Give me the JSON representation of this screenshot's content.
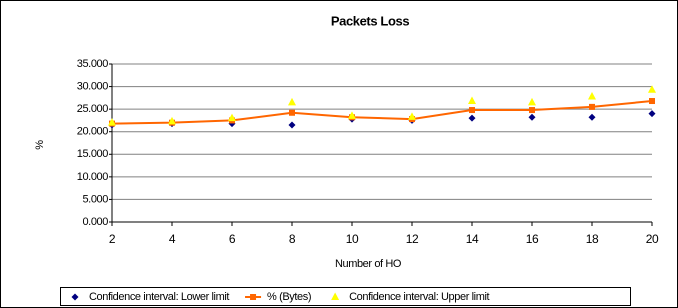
{
  "chart_data": {
    "type": "line",
    "title": "Packets Loss",
    "x_label": "Number of HO",
    "y_label": "%",
    "x": [
      2,
      4,
      6,
      8,
      10,
      12,
      14,
      16,
      18,
      20
    ],
    "xlim": [
      2,
      20
    ],
    "xticks": [
      2,
      4,
      6,
      8,
      10,
      12,
      14,
      16,
      18,
      20
    ],
    "ylim": [
      0,
      35
    ],
    "yticks": [
      {
        "value": 0,
        "label": "0.000"
      },
      {
        "value": 5,
        "label": "5.000"
      },
      {
        "value": 10,
        "label": "10.000"
      },
      {
        "value": 15,
        "label": "15.000"
      },
      {
        "value": 20,
        "label": "20.000"
      },
      {
        "value": 25,
        "label": "25.000"
      },
      {
        "value": 30,
        "label": "30.000"
      },
      {
        "value": 35,
        "label": "35.000"
      }
    ],
    "grid": true,
    "legend": "bottom",
    "series": [
      {
        "name": "Confidence interval: Lower limit",
        "color": "#000080",
        "marker": "diamond",
        "values": [
          21.5,
          21.8,
          21.8,
          21.5,
          22.8,
          22.5,
          23.0,
          23.2,
          23.2,
          24.0
        ]
      },
      {
        "name": "% (Bytes)",
        "color": "#ff6600",
        "marker": "square",
        "line": true,
        "values": [
          21.8,
          22.0,
          22.5,
          24.2,
          23.2,
          22.8,
          24.8,
          24.8,
          25.5,
          26.8
        ]
      },
      {
        "name": "Confidence interval: Upper limit",
        "color": "#ffff00",
        "marker": "triangle",
        "values": [
          22.0,
          22.3,
          23.0,
          26.5,
          23.5,
          23.3,
          26.8,
          26.5,
          27.8,
          29.3
        ]
      }
    ]
  }
}
